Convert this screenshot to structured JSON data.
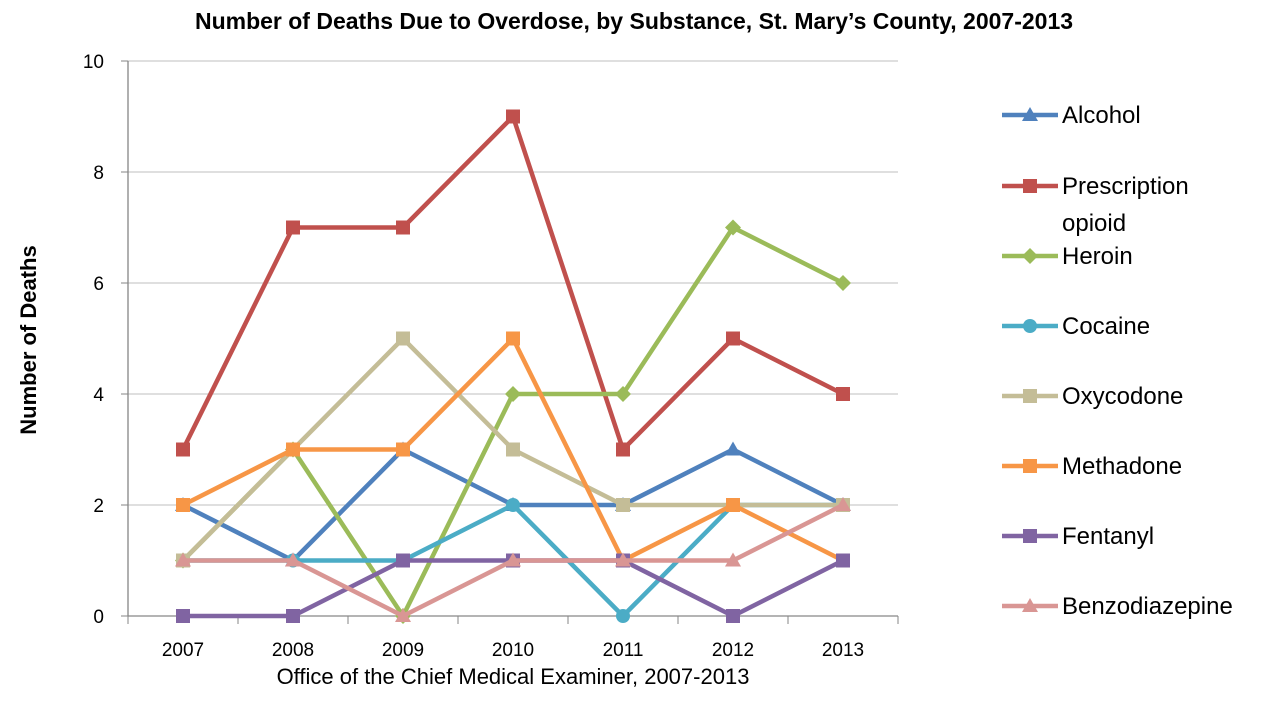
{
  "chart_data": {
    "type": "line",
    "title": "Number of Deaths Due to Overdose, by Substance, St. Mary’s County, 2007-2013",
    "xlabel": "Office of the Chief Medical Examiner, 2007-2013",
    "ylabel": "Number of Deaths",
    "categories": [
      "2007",
      "2008",
      "2009",
      "2010",
      "2011",
      "2012",
      "2013"
    ],
    "ylim": [
      0,
      10
    ],
    "yticks": [
      0,
      2,
      4,
      6,
      8,
      10
    ],
    "grid": true,
    "legend_position": "right",
    "series": [
      {
        "name": "Alcohol",
        "color": "#4F81BD",
        "marker": "triangle",
        "values": [
          2,
          1,
          3,
          2,
          2,
          3,
          2
        ]
      },
      {
        "name": "Prescription opioid",
        "color": "#C0504D",
        "marker": "square",
        "values": [
          3,
          7,
          7,
          9,
          3,
          5,
          4
        ]
      },
      {
        "name": "Heroin",
        "color": "#9BBB59",
        "marker": "diamond",
        "values": [
          1,
          3,
          0,
          4,
          4,
          7,
          6
        ]
      },
      {
        "name": "Cocaine",
        "color": "#4BACC6",
        "marker": "circle",
        "values": [
          1,
          1,
          1,
          2,
          0,
          2,
          2
        ]
      },
      {
        "name": "Oxycodone",
        "color": "#C4BD97",
        "marker": "square",
        "values": [
          1,
          3,
          5,
          3,
          2,
          2,
          2
        ]
      },
      {
        "name": "Methadone",
        "color": "#F79646",
        "marker": "square",
        "values": [
          2,
          3,
          3,
          5,
          1,
          2,
          1
        ]
      },
      {
        "name": "Fentanyl",
        "color": "#8064A2",
        "marker": "square",
        "values": [
          0,
          0,
          1,
          1,
          1,
          0,
          1
        ]
      },
      {
        "name": "Benzodiazepine",
        "color": "#D99694",
        "marker": "triangle",
        "values": [
          1,
          1,
          0,
          1,
          1,
          1,
          2
        ]
      }
    ],
    "legend_lines": [
      [
        "Alcohol"
      ],
      [
        "Prescription",
        "opioid"
      ],
      [
        "Heroin"
      ],
      [
        "Cocaine"
      ],
      [
        "Oxycodone"
      ],
      [
        "Methadone"
      ],
      [
        "Fentanyl"
      ],
      [
        "Benzodiazepine"
      ]
    ]
  }
}
